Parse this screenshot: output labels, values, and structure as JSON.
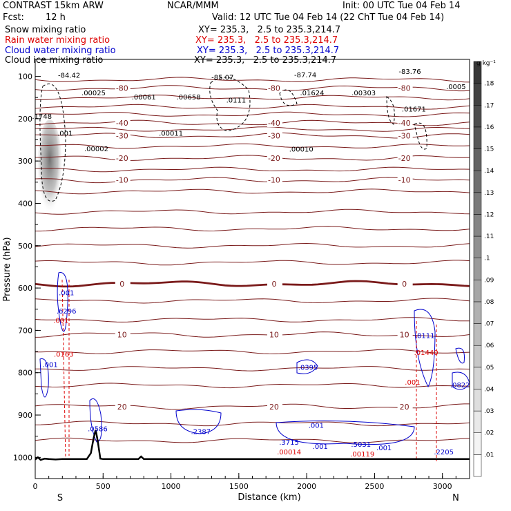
{
  "header": {
    "model": "CONTRAST 15km ARW",
    "forecast_label": "Fcst:",
    "forecast_value": "12 h",
    "center": "NCAR/MMM",
    "init": "Init: 00 UTC Tue 04 Feb 14",
    "valid": "Valid: 12 UTC Tue 04 Feb 14 (22 ChT Tue 04 Feb 14)",
    "fields": [
      {
        "name": "Snow mixing ratio",
        "xy": "XY= 235.3,   2.5 to 235.3,214.7",
        "color": "#000000"
      },
      {
        "name": "Rain water mixing ratio",
        "xy": "XY= 235.3,   2.5 to 235.3,214.7",
        "color": "#dd0000"
      },
      {
        "name": "Cloud water mixing ratio",
        "xy": "XY= 235.3,   2.5 to 235.3,214.7",
        "color": "#0000cc"
      },
      {
        "name": "Cloud ice mixing ratio",
        "xy": "XY= 235.3,   2.5 to 235.3,214.7",
        "color": "#000000"
      }
    ]
  },
  "chart_data": {
    "type": "heatmap",
    "xlabel": "Distance (km)",
    "ylabel": "Pressure (hPa)",
    "xlim": [
      0,
      3200
    ],
    "ylim": [
      1050,
      60
    ],
    "x_ticks": [
      "0",
      "500",
      "1000",
      "1500",
      "2000",
      "2500",
      "3000"
    ],
    "y_ticks": [
      "100",
      "200",
      "300",
      "400",
      "500",
      "600",
      "700",
      "800",
      "900",
      "1000"
    ],
    "end_labels": {
      "left": "S",
      "right": "N"
    },
    "colorbar": {
      "unit": "g kg⁻¹",
      "min": 0,
      "max": 0.19,
      "step": 0.01,
      "ticks": [
        ".18",
        ".17",
        ".16",
        ".15",
        ".14",
        ".13",
        ".12",
        ".11",
        ".1",
        ".09",
        ".08",
        ".07",
        ".06",
        ".05",
        ".04",
        ".03",
        ".02",
        ".01"
      ]
    },
    "temperature_contours": [
      {
        "value": -80,
        "p": 128,
        "label": "-80"
      },
      {
        "value": -40,
        "p": 210,
        "label": "-40"
      },
      {
        "value": -30,
        "p": 240,
        "label": "-30"
      },
      {
        "value": -20,
        "p": 293,
        "label": "-20"
      },
      {
        "value": -10,
        "p": 345,
        "label": "-10"
      },
      {
        "value": 0,
        "p": 590,
        "label": "0",
        "bold": true
      },
      {
        "value": 10,
        "p": 710,
        "label": "10"
      },
      {
        "value": 20,
        "p": 880,
        "label": "20"
      }
    ],
    "annotations": {
      "minima_black": [
        {
          "x": 250,
          "p": 103,
          "text": "-84.42"
        },
        {
          "x": 1380,
          "p": 108,
          "text": "-85.07"
        },
        {
          "x": 1990,
          "p": 102,
          "text": "-87.74"
        },
        {
          "x": 2760,
          "p": 94,
          "text": "-83.76"
        }
      ],
      "highs_black": [
        {
          "x": 430,
          "p": 145,
          "text": ".00025"
        },
        {
          "x": 800,
          "p": 155,
          "text": ".00061"
        },
        {
          "x": 1130,
          "p": 155,
          "text": ".00658"
        },
        {
          "x": 1480,
          "p": 162,
          "text": ".0111"
        },
        {
          "x": 2040,
          "p": 145,
          "text": ".01624"
        },
        {
          "x": 2420,
          "p": 145,
          "text": ".00303"
        },
        {
          "x": 2790,
          "p": 183,
          "text": ".01671"
        },
        {
          "x": 3100,
          "p": 130,
          "text": ".0005"
        },
        {
          "x": 1000,
          "p": 240,
          "text": ".00011"
        },
        {
          "x": 450,
          "p": 277,
          "text": ".00002"
        },
        {
          "x": 1960,
          "p": 278,
          "text": ".00010"
        },
        {
          "x": 50,
          "p": 200,
          "text": ".1748"
        },
        {
          "x": 220,
          "p": 240,
          "text": ".001"
        }
      ],
      "cloud_water_blue": [
        {
          "x": 230,
          "p": 617,
          "text": ".001"
        },
        {
          "x": 230,
          "p": 660,
          "text": ".6296"
        },
        {
          "x": 110,
          "p": 787,
          "text": ".001"
        },
        {
          "x": 460,
          "p": 938,
          "text": ".0586"
        },
        {
          "x": 1220,
          "p": 945,
          "text": ".2387"
        },
        {
          "x": 2010,
          "p": 793,
          "text": ".0395"
        },
        {
          "x": 2070,
          "p": 930,
          "text": ".001"
        },
        {
          "x": 1870,
          "p": 970,
          "text": ".3715"
        },
        {
          "x": 2100,
          "p": 980,
          "text": ".001"
        },
        {
          "x": 2400,
          "p": 975,
          "text": ".5031"
        },
        {
          "x": 2570,
          "p": 983,
          "text": ".001"
        },
        {
          "x": 2870,
          "p": 718,
          "text": ".8111"
        },
        {
          "x": 3130,
          "p": 835,
          "text": ".0822"
        },
        {
          "x": 3010,
          "p": 993,
          "text": ".2205"
        }
      ],
      "rain_red": [
        {
          "x": 190,
          "p": 682,
          "text": ".001"
        },
        {
          "x": 210,
          "p": 762,
          "text": ".0163"
        },
        {
          "x": 1870,
          "p": 993,
          "text": ".00014"
        },
        {
          "x": 2410,
          "p": 998,
          "text": ".00119"
        },
        {
          "x": 2880,
          "p": 758,
          "text": ".01440"
        },
        {
          "x": 2780,
          "p": 828,
          "text": ".001"
        }
      ]
    }
  }
}
